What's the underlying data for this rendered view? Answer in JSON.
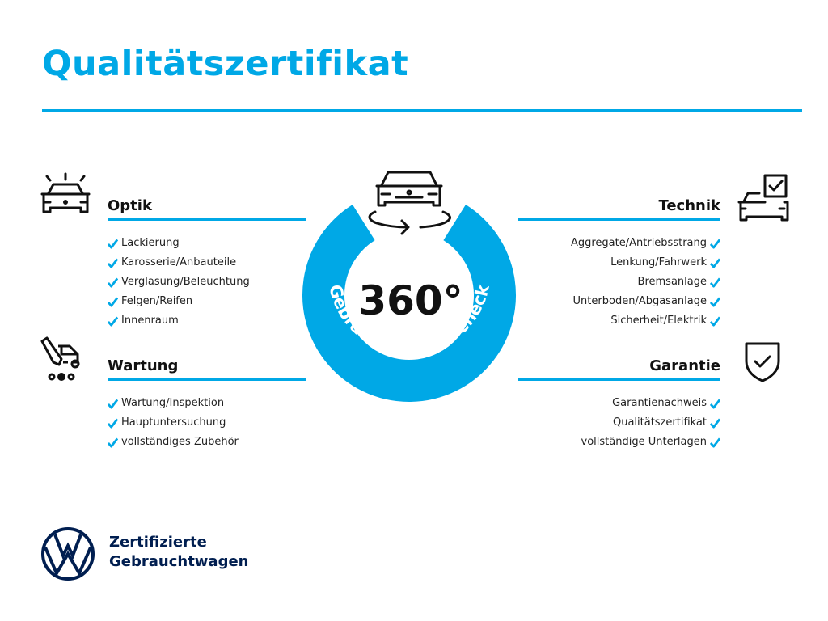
{
  "title": "Qualitätszertifikat",
  "center": {
    "number": "360°",
    "ring_text": "Gebrauchtwagen-Check"
  },
  "sections": {
    "optik": {
      "title": "Optik",
      "items": [
        "Lackierung",
        "Karosserie/Anbauteile",
        "Verglasung/Beleuchtung",
        "Felgen/Reifen",
        "Innenraum"
      ]
    },
    "wartung": {
      "title": "Wartung",
      "items": [
        "Wartung/Inspektion",
        "Hauptuntersuchung",
        "vollständiges Zubehör"
      ]
    },
    "technik": {
      "title": "Technik",
      "items": [
        "Aggregate/Antriebsstrang",
        "Lenkung/Fahrwerk",
        "Bremsanlage",
        "Unterboden/Abgasanlage",
        "Sicherheit/Elektrik"
      ]
    },
    "garantie": {
      "title": "Garantie",
      "items": [
        "Garantienachweis",
        "Qualitätszertifikat",
        "vollständige Unterlagen"
      ]
    }
  },
  "brand": {
    "line1": "Zertifizierte",
    "line2": "Gebrauchtwagen",
    "logo_text": "VW"
  },
  "colors": {
    "accent": "#00a8e6",
    "navy": "#001e50"
  }
}
